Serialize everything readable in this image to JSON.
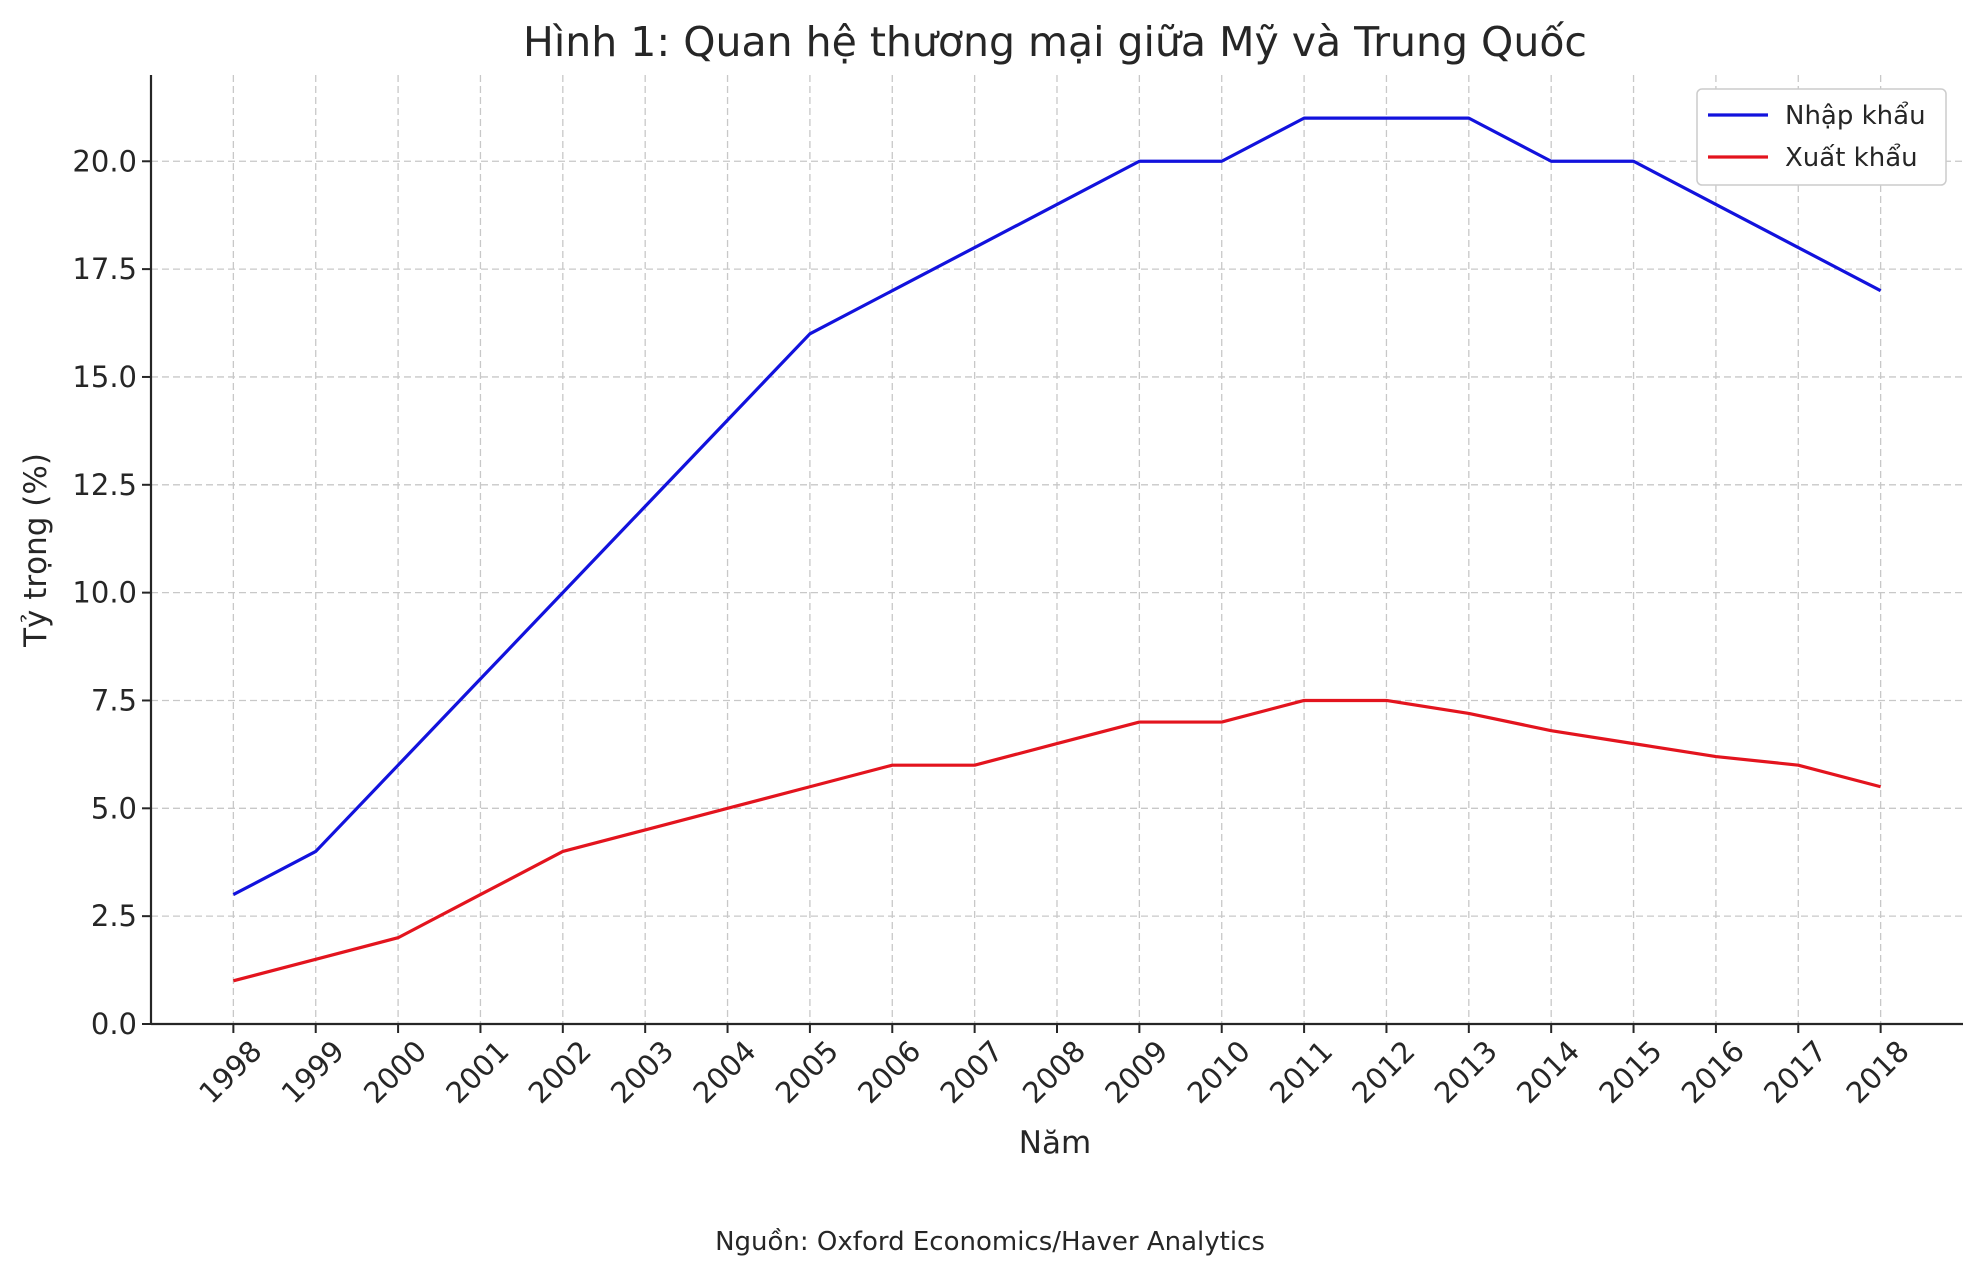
{
  "chart_data": {
    "type": "line",
    "title": "Hình 1: Quan hệ thương mại giữa Mỹ và Trung Quốc",
    "xlabel": "Năm",
    "ylabel": "Tỷ trọng (%)",
    "source": "Nguồn: Oxford Economics/Haver Analytics",
    "x": [
      1998,
      1999,
      2000,
      2001,
      2002,
      2003,
      2004,
      2005,
      2006,
      2007,
      2008,
      2009,
      2010,
      2011,
      2012,
      2013,
      2014,
      2015,
      2016,
      2017,
      2018
    ],
    "x_tick_labels": [
      "1998",
      "1999",
      "2000",
      "2001",
      "2002",
      "2003",
      "2004",
      "2005",
      "2006",
      "2007",
      "2008",
      "2009",
      "2010",
      "2011",
      "2012",
      "2013",
      "2014",
      "2015",
      "2016",
      "2017",
      "2018"
    ],
    "xlim": [
      1997,
      2019
    ],
    "ylim": [
      0,
      22
    ],
    "y_ticks": [
      0.0,
      2.5,
      5.0,
      7.5,
      10.0,
      12.5,
      15.0,
      17.5,
      20.0
    ],
    "y_tick_labels": [
      "0.0",
      "2.5",
      "5.0",
      "7.5",
      "10.0",
      "12.5",
      "15.0",
      "17.5",
      "20.0"
    ],
    "grid": true,
    "legend_position": "top-right",
    "series": [
      {
        "name": "Nhập khẩu",
        "color": "#1212dd",
        "values": [
          3,
          4,
          6,
          8,
          10,
          12,
          14,
          16,
          17,
          18,
          19,
          20,
          20,
          21,
          21,
          21,
          20,
          20,
          19,
          18,
          17
        ]
      },
      {
        "name": "Xuất khẩu",
        "color": "#e3141e",
        "values": [
          1,
          1.5,
          2,
          3,
          4,
          4.5,
          5,
          5.5,
          6,
          6,
          6.5,
          7,
          7,
          7.5,
          7.5,
          7.2,
          6.8,
          6.5,
          6.2,
          6,
          5.5
        ]
      }
    ]
  }
}
